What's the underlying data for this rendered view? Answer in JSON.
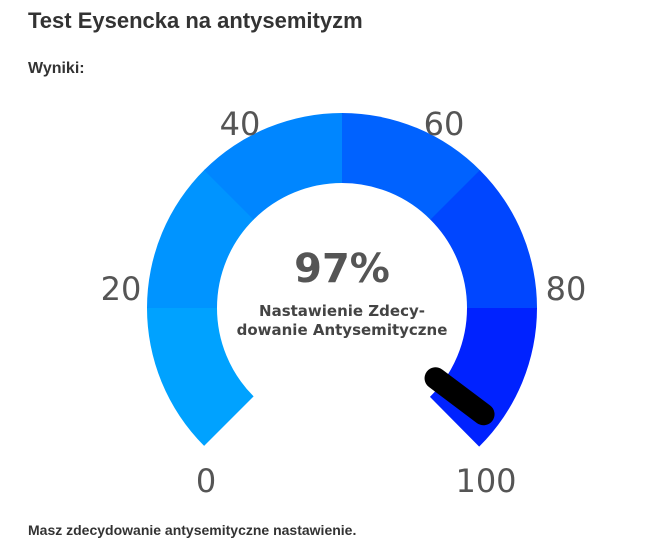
{
  "page": {
    "title": "Test Eysencka na antysemityzm",
    "results_heading": "Wyniki:",
    "result_message": "Masz zdecydowanie antysemityczne nastawienie."
  },
  "gauge": {
    "value": 97,
    "value_text": "97%",
    "description_lines": [
      "Nastawienie Zdecy-",
      "dowanie Antysemityczne"
    ],
    "min": 0,
    "max": 100,
    "tick_labels": [
      "0",
      "20",
      "40",
      "60",
      "80",
      "100"
    ],
    "segment_colors": [
      "#00a2ff",
      "#0094ff",
      "#0086ff",
      "#0062ff",
      "#0046ff",
      "#0022ff"
    ],
    "needle_color": "#000000"
  }
}
